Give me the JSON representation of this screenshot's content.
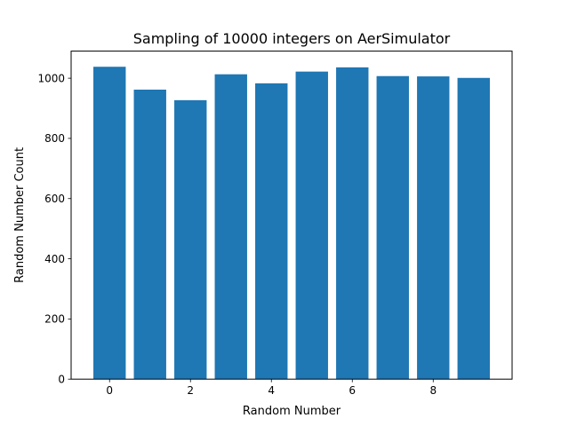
{
  "chart_data": {
    "type": "bar",
    "title": "Sampling of 10000 integers on AerSimulator",
    "xlabel": "Random Number",
    "ylabel": "Random Number Count",
    "categories": [
      0,
      1,
      2,
      3,
      4,
      5,
      6,
      7,
      8,
      9
    ],
    "values": [
      1038,
      962,
      927,
      1013,
      983,
      1022,
      1036,
      1007,
      1006,
      1001
    ],
    "xlim": [
      -0.95,
      9.95
    ],
    "ylim": [
      0,
      1090
    ],
    "xticks": [
      "0",
      "2",
      "4",
      "6",
      "8"
    ],
    "yticks": [
      "0",
      "200",
      "400",
      "600",
      "800",
      "1000"
    ],
    "bar_color": "#1f77b4",
    "grid": false
  }
}
